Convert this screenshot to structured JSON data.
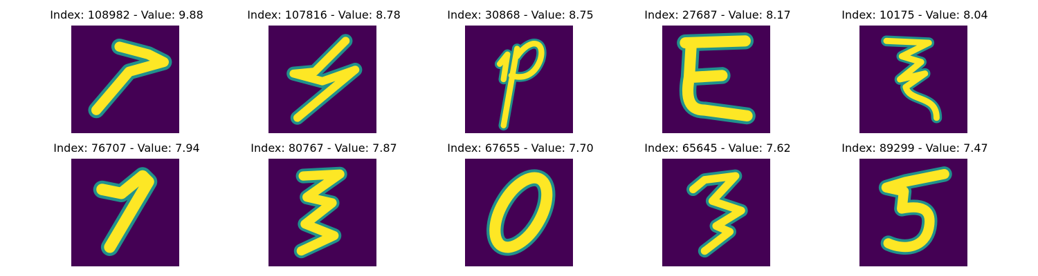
{
  "panels": [
    {
      "title": "Index: 108982 - Value: 9.88",
      "glyph": "7"
    },
    {
      "title": "Index: 107816 - Value: 8.78",
      "glyph": "5"
    },
    {
      "title": "Index: 30868 - Value: 8.75",
      "glyph": "p"
    },
    {
      "title": "Index: 27687 - Value: 8.17",
      "glyph": "E"
    },
    {
      "title": "Index: 10175 - Value: 8.04",
      "glyph": "3"
    },
    {
      "title": "Index: 76707 - Value: 7.94",
      "glyph": "7"
    },
    {
      "title": "Index: 80767 - Value: 7.87",
      "glyph": "3"
    },
    {
      "title": "Index: 67655 - Value: 7.70",
      "glyph": "0"
    },
    {
      "title": "Index: 65645 - Value: 7.62",
      "glyph": "3"
    },
    {
      "title": "Index: 89299 - Value: 7.47",
      "glyph": "5"
    }
  ],
  "colors": {
    "background": "#440154",
    "stroke": "#fde725",
    "edge": "#21918c"
  }
}
